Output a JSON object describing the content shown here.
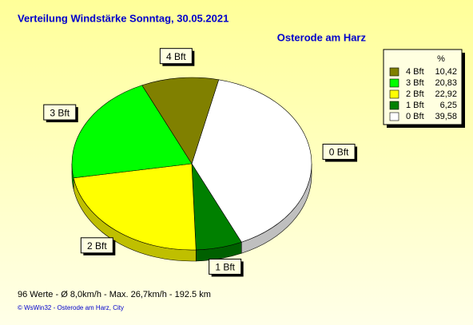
{
  "chart_data": {
    "type": "pie",
    "title": "Verteilung Windstärke  Sonntag, 30.05.2021",
    "subtitle": "Osterode am Harz",
    "legend_header": "%",
    "legend": "top-right",
    "categories": [
      "0 Bft",
      "1 Bft",
      "2 Bft",
      "3 Bft",
      "4 Bft"
    ],
    "values": [
      39.58,
      6.25,
      22.92,
      20.83,
      10.42
    ],
    "value_labels": [
      "39,58",
      "6,25",
      "22,92",
      "20,83",
      "10,42"
    ],
    "colors": [
      "#ffffff",
      "#008000",
      "#ffff00",
      "#00ff00",
      "#808000"
    ],
    "footer": "96 Werte   -   Ø 8,0km/h  -  Max. 26,7km/h   -   192.5 km",
    "copyright": "© WsWin32  -  Osterode am Harz, City"
  }
}
